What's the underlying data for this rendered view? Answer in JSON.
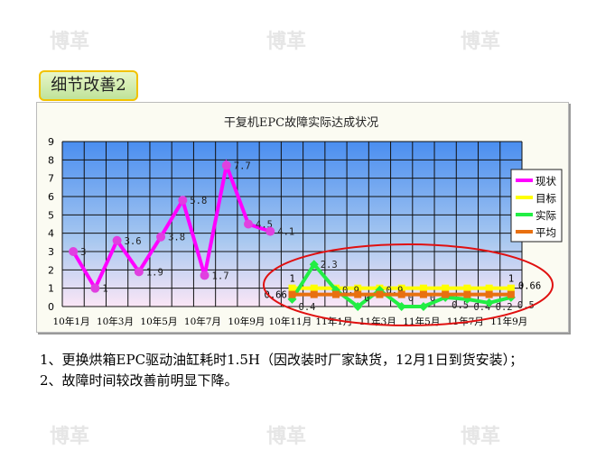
{
  "header": {
    "tag": "细节改善2"
  },
  "watermark": "博革",
  "chart_data": {
    "type": "line",
    "title": "干复机EPC故障实际达成状况",
    "categories": [
      "10年1月",
      "10年2月",
      "10年3月",
      "10年4月",
      "10年5月",
      "10年6月",
      "10年7月",
      "10年8月",
      "10年9月",
      "10年10月",
      "10年11月",
      "10年12月",
      "11年1月",
      "11年2月",
      "11年3月",
      "11年4月",
      "11年5月",
      "11年6月",
      "11年7月",
      "11年8月",
      "11年9月"
    ],
    "tick_labels": [
      "10年1月",
      "10年3月",
      "10年5月",
      "10年7月",
      "10年9月",
      "10年11月",
      "11年1月",
      "11年3月",
      "11年5月",
      "11年7月",
      "11年9月"
    ],
    "ylim": [
      0,
      9
    ],
    "grid": true,
    "legend": "right",
    "series": [
      {
        "name": "现状",
        "color": "#ff00ff",
        "values": [
          3,
          1,
          3.6,
          1.9,
          3.8,
          5.8,
          1.7,
          7.7,
          4.5,
          4.1,
          null,
          null,
          null,
          null,
          null,
          null,
          null,
          null,
          null,
          null,
          null
        ]
      },
      {
        "name": "目标",
        "color": "#ffff00",
        "values": [
          null,
          null,
          null,
          null,
          null,
          null,
          null,
          null,
          null,
          null,
          1,
          1,
          1,
          1,
          1,
          1,
          1,
          1,
          1,
          1,
          1
        ]
      },
      {
        "name": "实际",
        "color": "#22ee44",
        "values": [
          null,
          null,
          null,
          null,
          null,
          null,
          null,
          null,
          null,
          null,
          0.4,
          2.3,
          0.9,
          0,
          0.9,
          0,
          0,
          0.5,
          0.4,
          0.2,
          0.5
        ]
      },
      {
        "name": "平均",
        "color": "#e87010",
        "values": [
          null,
          null,
          null,
          null,
          null,
          null,
          null,
          null,
          null,
          null,
          0.66,
          0.66,
          0.66,
          0.66,
          0.66,
          0.66,
          0.66,
          0.66,
          0.66,
          0.66,
          0.66
        ]
      }
    ],
    "annotations": [
      "1",
      "0.66",
      "1",
      "0.66"
    ]
  },
  "text": {
    "line1": "1、更换烘箱EPC驱动油缸耗时1.5H（因改装时厂家缺货，12月1日到货安装）；",
    "line2": "2、故障时间较改善前明显下降。"
  }
}
